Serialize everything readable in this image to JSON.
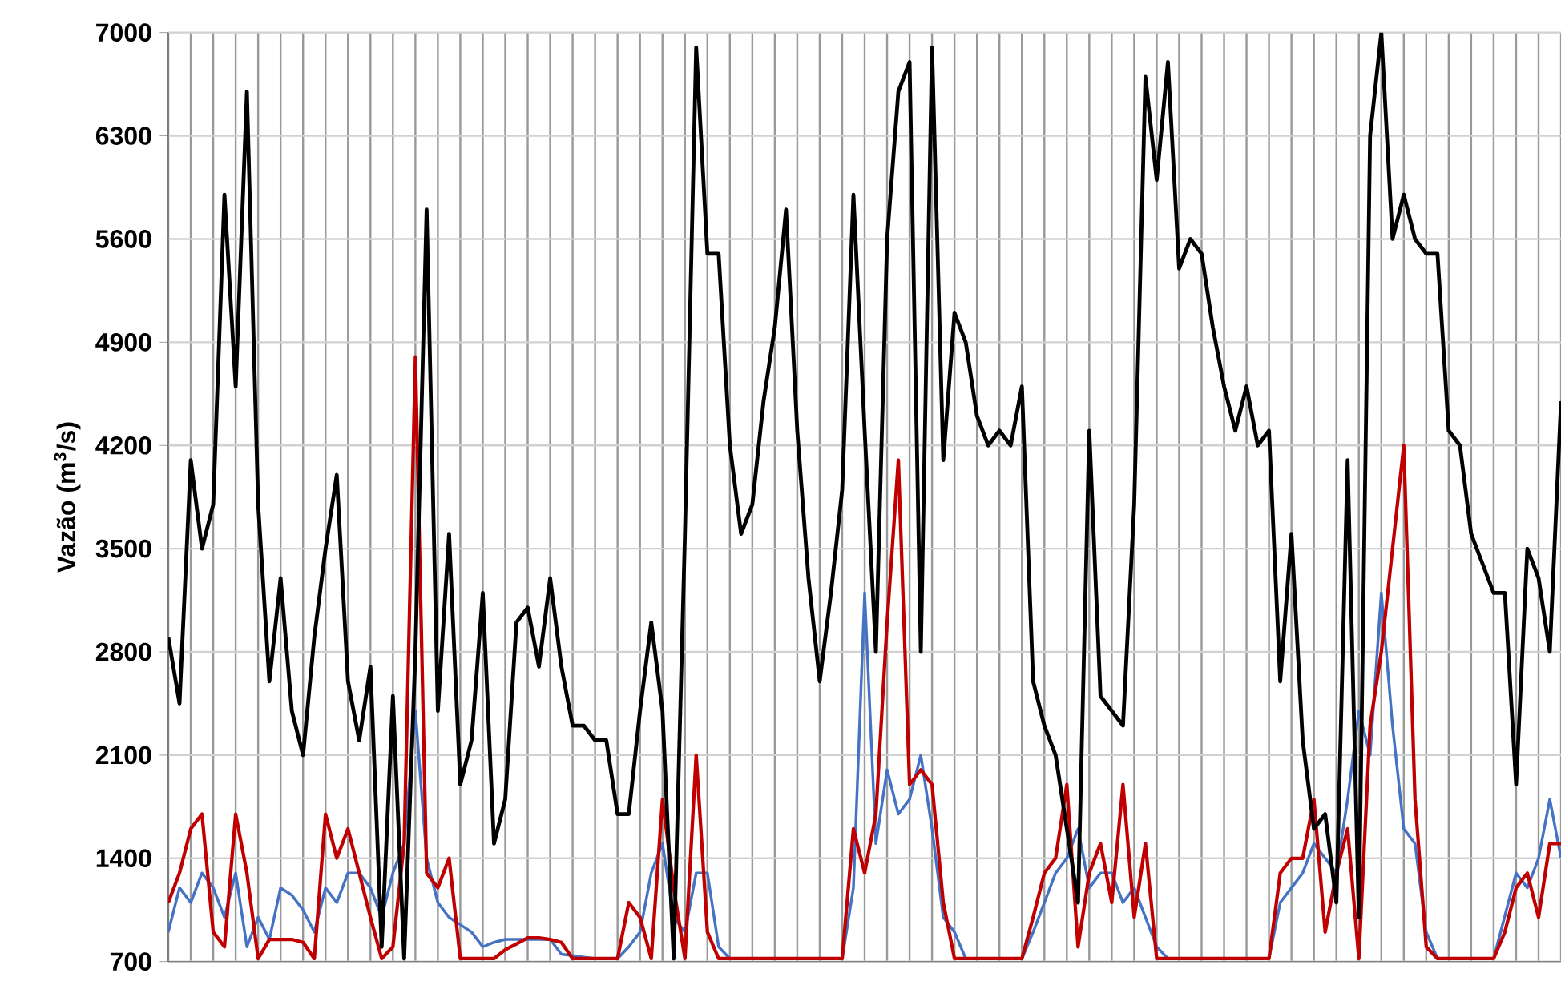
{
  "chart_data": {
    "type": "line",
    "ylabel": "Vazão (m$^{3}$/s)",
    "categories": [
      null,
      null,
      null,
      null,
      null,
      null,
      null,
      null,
      null,
      null,
      null,
      null,
      null,
      null,
      null,
      null,
      null,
      null,
      null,
      null,
      null,
      null,
      null,
      null,
      null,
      null,
      null,
      null,
      null,
      null,
      null,
      null,
      null,
      null,
      null,
      null,
      null,
      null,
      null,
      null,
      null,
      null,
      null,
      null,
      null,
      null,
      null,
      null,
      null,
      null,
      null,
      null,
      null,
      null,
      null,
      null,
      null,
      null,
      null,
      null,
      null,
      null,
      null,
      null,
      null,
      null,
      null,
      null,
      null,
      null,
      null,
      null,
      null,
      null,
      null,
      null,
      null,
      null,
      null,
      null,
      null,
      null,
      null,
      null,
      null,
      null,
      null,
      null,
      null,
      null,
      null,
      null,
      null,
      null,
      null,
      null,
      null,
      null,
      null,
      null,
      null,
      null,
      null,
      null,
      null,
      null,
      null,
      null,
      null,
      null,
      null,
      null,
      null,
      null,
      null,
      null,
      null,
      null,
      null,
      null,
      null,
      null,
      null,
      null,
      null
    ],
    "ylim": [
      700,
      7000
    ],
    "yticks": [
      700,
      1400,
      2100,
      2800,
      3500,
      4200,
      4900,
      5600,
      6300,
      7000
    ],
    "tick_labels": "y",
    "grid": true,
    "marker": "none",
    "line_style": "solid",
    "series": [
      {
        "color": "#4472c4",
        "values": [
          900,
          1200,
          1100,
          1300,
          1200,
          1000,
          1300,
          800,
          1000,
          850,
          1200,
          1150,
          1050,
          900,
          1200,
          1100,
          1300,
          1300,
          1200,
          1000,
          1300,
          1500,
          2400,
          1400,
          1100,
          1000,
          950,
          900,
          800,
          830,
          850,
          850,
          850,
          850,
          850,
          750,
          740,
          730,
          720,
          720,
          720,
          800,
          900,
          1300,
          1500,
          1000,
          900,
          1300,
          1300,
          800,
          720,
          720,
          720,
          720,
          720,
          720,
          720,
          720,
          720,
          720,
          720,
          1200,
          3200,
          1500,
          2000,
          1700,
          1800,
          2100,
          1600,
          1000,
          900,
          720,
          720,
          720,
          720,
          720,
          720,
          900,
          1100,
          1300,
          1400,
          1600,
          1200,
          1300,
          1300,
          1100,
          1200,
          1000,
          800,
          720,
          720,
          720,
          720,
          720,
          720,
          720,
          720,
          720,
          720,
          1100,
          1200,
          1300,
          1500,
          1400,
          1300,
          1800,
          2400,
          2100,
          3200,
          2300,
          1600,
          1500,
          900,
          720,
          720,
          720,
          720,
          720,
          720,
          null,
          1300,
          1200,
          1400,
          1800,
          1400
        ]
      },
      {
        "color": "#c00000",
        "values": [
          1100,
          1300,
          1600,
          1700,
          900,
          800,
          1700,
          1300,
          720,
          850,
          850,
          850,
          830,
          720,
          1700,
          1400,
          1600,
          1300,
          1000,
          720,
          800,
          1500,
          4800,
          1300,
          1200,
          1400,
          720,
          720,
          720,
          720,
          780,
          820,
          860,
          860,
          850,
          830,
          720,
          720,
          720,
          720,
          720,
          1100,
          1000,
          720,
          1800,
          1200,
          720,
          2100,
          900,
          720,
          720,
          720,
          720,
          720,
          720,
          720,
          720,
          720,
          720,
          720,
          720,
          1600,
          1300,
          1700,
          3000,
          4100,
          1900,
          2000,
          1900,
          1100,
          720,
          720,
          720,
          720,
          720,
          720,
          720,
          1000,
          1300,
          1400,
          1900,
          800,
          1300,
          1500,
          1100,
          1900,
          1000,
          1500,
          720,
          720,
          720,
          720,
          720,
          720,
          720,
          720,
          720,
          720,
          720,
          1300,
          1400,
          1400,
          1800,
          900,
          1300,
          1600,
          720,
          2300,
          2800,
          3500,
          4200,
          1800,
          800,
          720,
          720,
          720,
          720,
          720,
          720,
          900,
          1200,
          1300,
          1000,
          1500,
          1500
        ]
      },
      {
        "color": "#000000",
        "values": [
          2900,
          2450,
          4100,
          3500,
          3800,
          5900,
          4600,
          6600,
          3800,
          2600,
          3300,
          2400,
          2100,
          2900,
          3500,
          4000,
          2600,
          2200,
          2700,
          800,
          2500,
          720,
          2800,
          5800,
          2400,
          3600,
          1900,
          2200,
          3200,
          1500,
          1800,
          3000,
          3100,
          2700,
          3300,
          2700,
          2300,
          2300,
          2200,
          2200,
          1700,
          1700,
          2400,
          3000,
          2400,
          720,
          3600,
          6900,
          5500,
          5500,
          4200,
          3600,
          3800,
          4500,
          5000,
          5800,
          4300,
          3300,
          2600,
          3200,
          3900,
          5900,
          4300,
          2800,
          5600,
          6600,
          6800,
          2800,
          6900,
          4100,
          5100,
          4900,
          4400,
          4200,
          4300,
          4200,
          4600,
          2600,
          2300,
          2100,
          1600,
          1100,
          4300,
          2500,
          2400,
          2300,
          3800,
          6700,
          6000,
          6800,
          5400,
          5600,
          5500,
          5000,
          4600,
          4300,
          4600,
          4200,
          4300,
          2600,
          3600,
          2200,
          1600,
          1700,
          1100,
          4100,
          1000,
          6300,
          7000,
          5600,
          5900,
          5600,
          5500,
          5500,
          4300,
          4200,
          3600,
          3400,
          3200,
          3200,
          1900,
          3500,
          3300,
          2800,
          4500
        ]
      }
    ]
  }
}
